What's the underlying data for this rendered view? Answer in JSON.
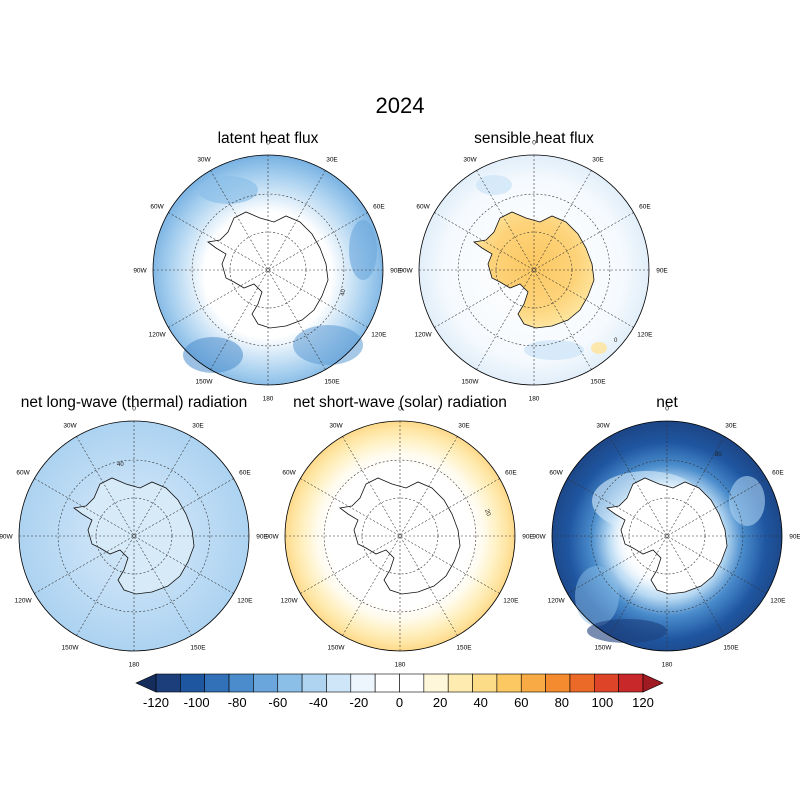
{
  "figure": {
    "title": "2024"
  },
  "panels": [
    {
      "id": "latent",
      "title": "latent heat flux",
      "contour_labels": [
        "40"
      ]
    },
    {
      "id": "sensible",
      "title": "sensible heat flux",
      "contour_labels": [
        "0"
      ]
    },
    {
      "id": "longwave",
      "title": "net long-wave (thermal) radiation",
      "contour_labels": [
        "40"
      ]
    },
    {
      "id": "shortwave",
      "title": "net short-wave (solar) radiation",
      "contour_labels": [
        "20"
      ]
    },
    {
      "id": "net",
      "title": "net",
      "contour_labels": [
        "80"
      ]
    }
  ],
  "longitude_labels": [
    "0",
    "30E",
    "60E",
    "90E",
    "120E",
    "150E",
    "180",
    "150W",
    "120W",
    "90W",
    "60W",
    "30W"
  ],
  "colorbar": {
    "tick_labels": [
      "-120",
      "-100",
      "-80",
      "-60",
      "-40",
      "-20",
      "0",
      "20",
      "40",
      "60",
      "80",
      "100",
      "120"
    ],
    "colors": [
      "#1c3f7c",
      "#1f56a0",
      "#3270b8",
      "#4a8ccc",
      "#6aa6dc",
      "#8cbfe8",
      "#aed4f1",
      "#cfe6f8",
      "#eef6fd",
      "#ffffff",
      "#ffffff",
      "#fff7d9",
      "#feebb0",
      "#fddc88",
      "#fcc862",
      "#f8ab44",
      "#f48b2f",
      "#ec6a28",
      "#de4528",
      "#c8282a"
    ],
    "min_color": "#142d5c",
    "max_color": "#a01a22"
  }
}
